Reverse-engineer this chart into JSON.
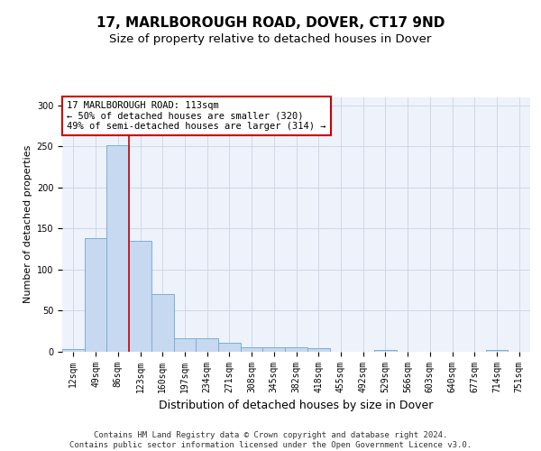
{
  "title1": "17, MARLBOROUGH ROAD, DOVER, CT17 9ND",
  "title2": "Size of property relative to detached houses in Dover",
  "xlabel": "Distribution of detached houses by size in Dover",
  "ylabel": "Number of detached properties",
  "categories": [
    "12sqm",
    "49sqm",
    "86sqm",
    "123sqm",
    "160sqm",
    "197sqm",
    "234sqm",
    "271sqm",
    "308sqm",
    "345sqm",
    "382sqm",
    "418sqm",
    "455sqm",
    "492sqm",
    "529sqm",
    "566sqm",
    "603sqm",
    "640sqm",
    "677sqm",
    "714sqm",
    "751sqm"
  ],
  "values": [
    3,
    138,
    251,
    135,
    70,
    17,
    17,
    11,
    5,
    6,
    5,
    4,
    0,
    0,
    2,
    0,
    0,
    0,
    0,
    2,
    0
  ],
  "bar_color": "#c6d9f0",
  "bar_edge_color": "#7bafd4",
  "grid_color": "#d0d8e8",
  "background_color": "#eef2fa",
  "vline_x_index": 2.5,
  "vline_color": "#cc0000",
  "annotation_box_text": "17 MARLBOROUGH ROAD: 113sqm\n← 50% of detached houses are smaller (320)\n49% of semi-detached houses are larger (314) →",
  "annotation_box_edgecolor": "#cc0000",
  "footer": "Contains HM Land Registry data © Crown copyright and database right 2024.\nContains public sector information licensed under the Open Government Licence v3.0.",
  "ylim": [
    0,
    310
  ],
  "title1_fontsize": 11,
  "title2_fontsize": 9.5,
  "xlabel_fontsize": 9,
  "ylabel_fontsize": 8,
  "tick_fontsize": 7,
  "annotation_fontsize": 7.5,
  "footer_fontsize": 6.5
}
